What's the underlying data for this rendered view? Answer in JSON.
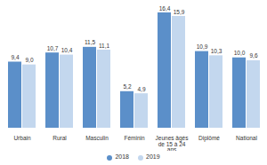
{
  "chart_data": {
    "type": "bar",
    "categories": [
      "Urbain",
      "Rural",
      "Masculin",
      "Féminin",
      "Jeunes âgés de 15 à 24 ans",
      "Diplômé",
      "National"
    ],
    "series": [
      {
        "name": "2018",
        "color": "#5b8fc9",
        "values": [
          9.4,
          10.7,
          11.5,
          5.2,
          16.4,
          10.9,
          10.0
        ],
        "value_labels": [
          "9,4",
          "10,7",
          "11,5",
          "5,2",
          "16,4",
          "10,9",
          "10,0"
        ]
      },
      {
        "name": "2019",
        "color": "#c3d7ee",
        "values": [
          9.0,
          10.4,
          11.1,
          4.9,
          15.9,
          10.3,
          9.6
        ],
        "value_labels": [
          "9,0",
          "10,4",
          "11,1",
          "4,9",
          "15,9",
          "10,3",
          "9,6"
        ]
      }
    ],
    "data_labels": true,
    "tick_labels": "x",
    "legend": "bottom"
  }
}
